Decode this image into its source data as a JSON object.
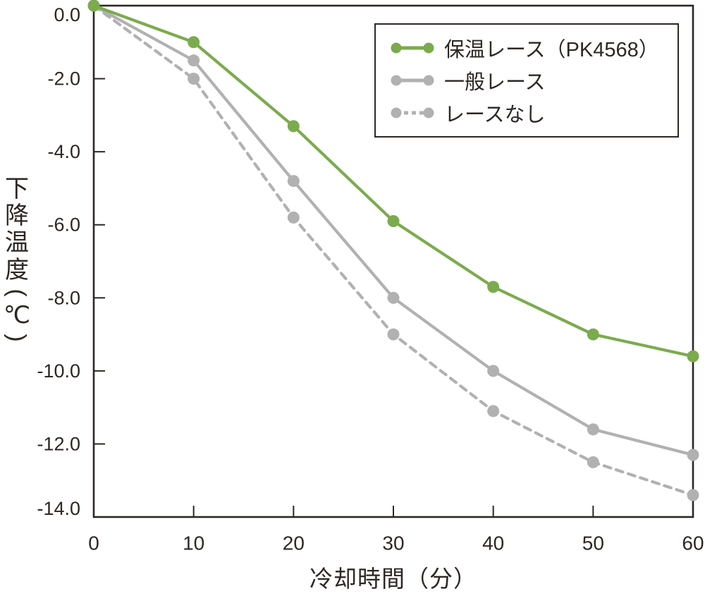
{
  "colors": {
    "accent_green": "#7BAB4E",
    "line_gray": "#B1B1B1",
    "axis_dark": "#2E2723",
    "background": "#FFFFFF"
  },
  "chart_data": {
    "type": "line",
    "title": "",
    "xlabel": "冷却時間（分）",
    "ylabel": "下降温度（℃）",
    "x": [
      0,
      10,
      20,
      30,
      40,
      50,
      60
    ],
    "x_tick_labels": [
      "0",
      "10",
      "20",
      "30",
      "40",
      "50",
      "60"
    ],
    "y_ticks": [
      0,
      -2,
      -4,
      -6,
      -8,
      -10,
      -12,
      -14
    ],
    "y_tick_labels": [
      "0.0",
      "-2.0",
      "-4.0",
      "-6.0",
      "-8.0",
      "-10.0",
      "-12.0",
      "-14.0"
    ],
    "xlim": [
      0,
      60
    ],
    "ylim": [
      -14,
      0
    ],
    "grid": false,
    "legend_position": "top-right",
    "series": [
      {
        "name": "保温レース（PK4568）",
        "color": "#7BAB4E",
        "style": "solid",
        "marker": "circle",
        "values": [
          0.0,
          -1.0,
          -3.3,
          -5.9,
          -7.7,
          -9.0,
          -9.6
        ]
      },
      {
        "name": "一般レース",
        "color": "#B1B1B1",
        "style": "solid",
        "marker": "circle",
        "values": [
          0.0,
          -1.5,
          -4.8,
          -8.0,
          -10.0,
          -11.6,
          -12.3
        ]
      },
      {
        "name": "レースなし",
        "color": "#B1B1B1",
        "style": "dashed",
        "marker": "circle",
        "values": [
          0.0,
          -2.0,
          -5.8,
          -9.0,
          -11.1,
          -12.5,
          -13.4
        ]
      }
    ]
  }
}
